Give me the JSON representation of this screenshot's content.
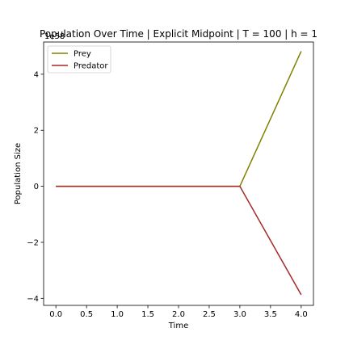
{
  "chart_data": {
    "type": "line",
    "title": "Population Over Time | Explicit Midpoint | T = 100 | h = 1",
    "xlabel": "Time",
    "ylabel": "Population Size",
    "y_offset_label": "1e58",
    "xlim": [
      -0.2,
      4.2
    ],
    "ylim": [
      -4.25,
      5.15
    ],
    "x_ticks": [
      0.0,
      0.5,
      1.0,
      1.5,
      2.0,
      2.5,
      3.0,
      3.5,
      4.0
    ],
    "x_tick_labels": [
      "0.0",
      "0.5",
      "1.0",
      "1.5",
      "2.0",
      "2.5",
      "3.0",
      "3.5",
      "4.0"
    ],
    "y_ticks": [
      -4,
      -2,
      0,
      2,
      4
    ],
    "y_tick_labels": [
      "−4",
      "−2",
      "0",
      "2",
      "4"
    ],
    "grid": false,
    "legend_position": "upper left",
    "x": [
      0,
      1,
      2,
      3,
      4
    ],
    "series": [
      {
        "name": "Prey",
        "color": "#808000",
        "values": [
          0,
          0,
          0,
          0,
          4.82
        ]
      },
      {
        "name": "Predator",
        "color": "#a52a2a",
        "values": [
          0,
          0,
          0,
          0,
          -3.87
        ]
      }
    ]
  }
}
